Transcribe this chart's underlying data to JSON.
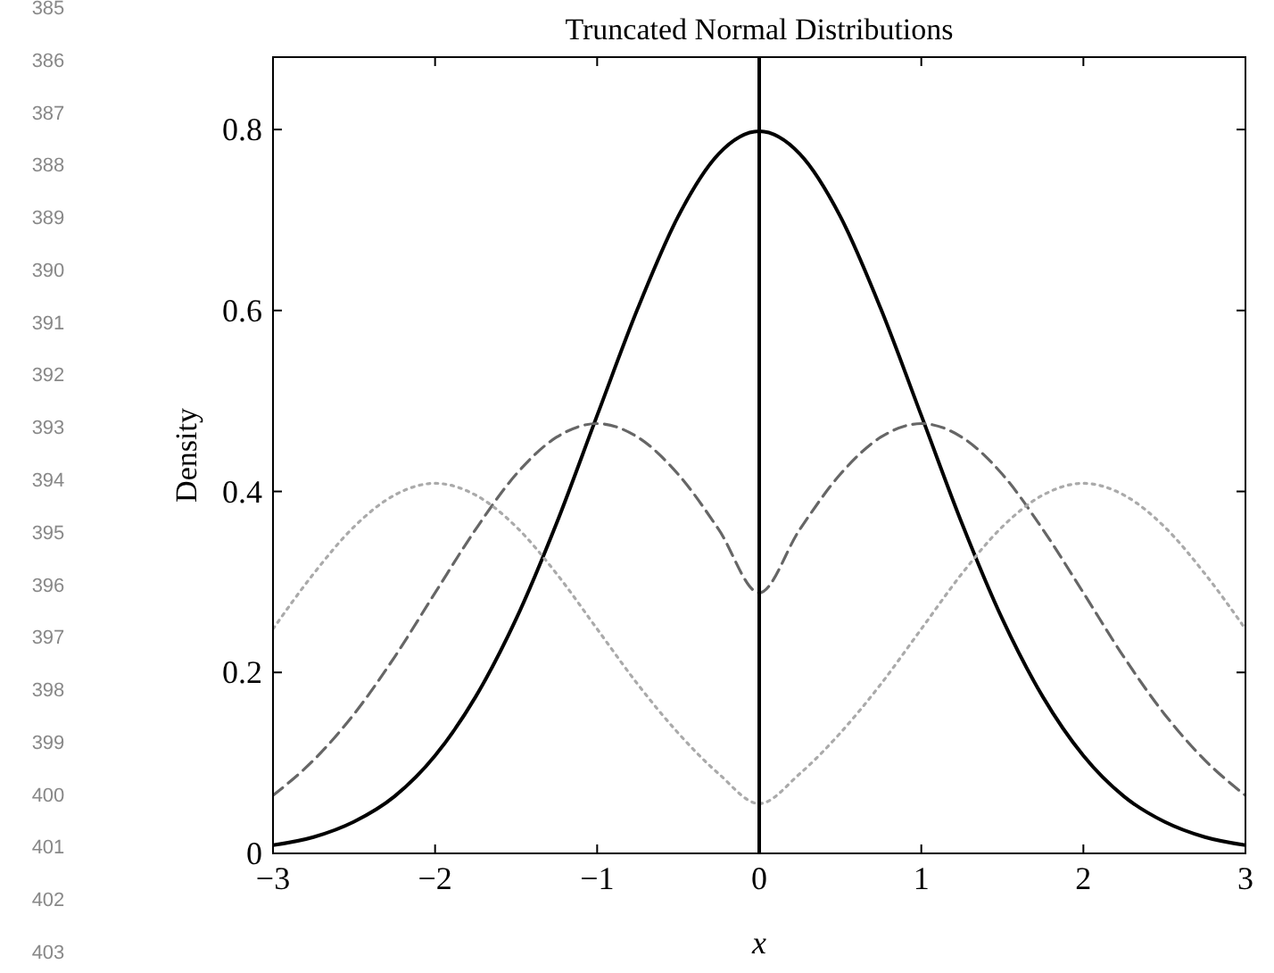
{
  "chart_data": {
    "type": "line",
    "title": "Truncated Normal Distributions",
    "xlabel": "x",
    "ylabel": "Density",
    "x": [
      -3,
      -2.75,
      -2.5,
      -2.25,
      -2,
      -1.75,
      -1.5,
      -1.25,
      -1,
      -0.75,
      -0.5,
      -0.25,
      0,
      0.25,
      0.5,
      0.75,
      1,
      1.25,
      1.5,
      1.75,
      2,
      2.25,
      2.5,
      2.75,
      3
    ],
    "series": [
      {
        "color": "#000000",
        "line_style": "solid",
        "values": [
          0.009,
          0.018,
          0.035,
          0.063,
          0.108,
          0.173,
          0.259,
          0.365,
          0.484,
          0.602,
          0.704,
          0.773,
          0.798,
          0.773,
          0.704,
          0.602,
          0.484,
          0.365,
          0.259,
          0.173,
          0.108,
          0.063,
          0.035,
          0.018,
          0.009
        ]
      },
      {
        "color": "#666666",
        "line_style": "dashed",
        "values": [
          0.064,
          0.103,
          0.154,
          0.217,
          0.288,
          0.358,
          0.419,
          0.46,
          0.475,
          0.46,
          0.419,
          0.358,
          0.288,
          0.358,
          0.419,
          0.46,
          0.475,
          0.46,
          0.419,
          0.358,
          0.288,
          0.217,
          0.154,
          0.103,
          0.064
        ]
      },
      {
        "color": "#aaaaaa",
        "line_style": "dotted",
        "values": [
          0.248,
          0.309,
          0.361,
          0.396,
          0.409,
          0.396,
          0.361,
          0.309,
          0.248,
          0.187,
          0.133,
          0.088,
          0.055,
          0.088,
          0.133,
          0.187,
          0.248,
          0.309,
          0.361,
          0.396,
          0.409,
          0.396,
          0.361,
          0.309,
          0.248
        ]
      }
    ],
    "xlim": [
      -3,
      3
    ],
    "xticks": [
      {
        "value": -3,
        "label": "−3"
      },
      {
        "value": -2,
        "label": "−2"
      },
      {
        "value": -1,
        "label": "−1"
      },
      0,
      1,
      2,
      3
    ],
    "ylim": [
      0,
      0.88
    ],
    "yticks": [
      0,
      0.2,
      0.4,
      0.6,
      0.8
    ],
    "ref_lines": [
      {
        "axis": "x",
        "value": 0,
        "color": "#000000"
      }
    ],
    "grid": false,
    "annotations": [
      "385",
      "386",
      "387",
      "388",
      "389",
      "390",
      "391",
      "392",
      "393",
      "394",
      "395",
      "396",
      "397",
      "398",
      "399",
      "400",
      "401",
      "402",
      "403"
    ]
  }
}
